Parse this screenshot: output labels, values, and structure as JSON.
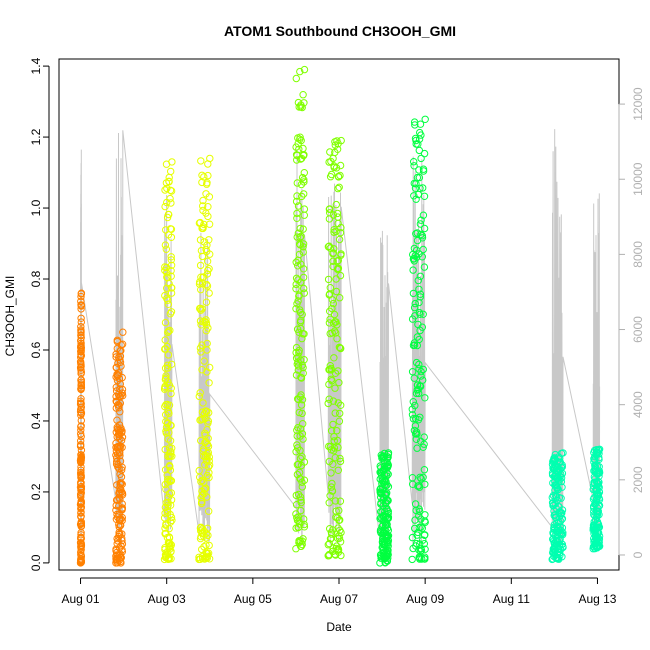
{
  "chart_data": {
    "type": "scatter",
    "title": "ATOM1 Southbound CH3OOH_GMI",
    "xlabel": "Date",
    "ylabel": "CH3OOH_GMI",
    "x_unit": "day of August 2016",
    "xlim": [
      0.5,
      13.5
    ],
    "ylim": [
      -0.02,
      1.42
    ],
    "y_ticks": [
      0.0,
      0.2,
      0.4,
      0.6,
      0.8,
      1.0,
      1.2,
      1.4
    ],
    "y_tick_labels": [
      "0.0",
      "0.2",
      "0.4",
      "0.6",
      "0.8",
      "1.0",
      "1.2",
      "1.4"
    ],
    "x_ticks": [
      1,
      3,
      5,
      7,
      9,
      11,
      13
    ],
    "x_tick_labels": [
      "Aug 01",
      "Aug 03",
      "Aug 05",
      "Aug 07",
      "Aug 09",
      "Aug 11",
      "Aug 13"
    ],
    "secondary_axis": {
      "description": "altitude trace (grey line)",
      "ylim": [
        -400,
        13200
      ],
      "ticks": [
        0,
        2000,
        4000,
        6000,
        8000,
        10000,
        12000
      ],
      "tick_labels": [
        "0",
        "2000",
        "4000",
        "6000",
        "8000",
        "10000",
        "12000"
      ],
      "color": "#b0b0b0"
    },
    "grid": false,
    "legend": "none",
    "series": [
      {
        "flight": 1,
        "color": "#ff8000",
        "x_range": [
          1.0,
          1.02
        ],
        "y_range": [
          0.0,
          0.76
        ]
      },
      {
        "flight": 2,
        "color": "#ff8000",
        "x_range": [
          1.82,
          1.98
        ],
        "y_range": [
          0.0,
          0.65
        ]
      },
      {
        "flight": 3,
        "color": "#e6ff00",
        "x_range": [
          2.95,
          3.12
        ],
        "y_range": [
          0.01,
          1.13
        ]
      },
      {
        "flight": 4,
        "color": "#e6ff00",
        "x_range": [
          3.75,
          4.0
        ],
        "y_range": [
          0.01,
          1.14
        ]
      },
      {
        "flight": 5,
        "color": "#80ff00",
        "x_range": [
          6.0,
          6.2
        ],
        "y_range": [
          0.04,
          1.39
        ]
      },
      {
        "flight": 6,
        "color": "#80ff00",
        "x_range": [
          6.75,
          7.05
        ],
        "y_range": [
          0.02,
          1.19
        ]
      },
      {
        "flight": 7,
        "color": "#00ff40",
        "x_range": [
          7.95,
          8.15
        ],
        "y_range": [
          0.0,
          0.31
        ]
      },
      {
        "flight": 8,
        "color": "#00ff40",
        "x_range": [
          8.7,
          9.0
        ],
        "y_range": [
          0.01,
          1.25
        ]
      },
      {
        "flight": 9,
        "color": "#00ffb0",
        "x_range": [
          11.95,
          12.2
        ],
        "y_range": [
          0.01,
          0.31
        ]
      },
      {
        "flight": 10,
        "color": "#00ffb0",
        "x_range": [
          12.9,
          13.05
        ],
        "y_range": [
          0.04,
          0.32
        ]
      }
    ]
  }
}
